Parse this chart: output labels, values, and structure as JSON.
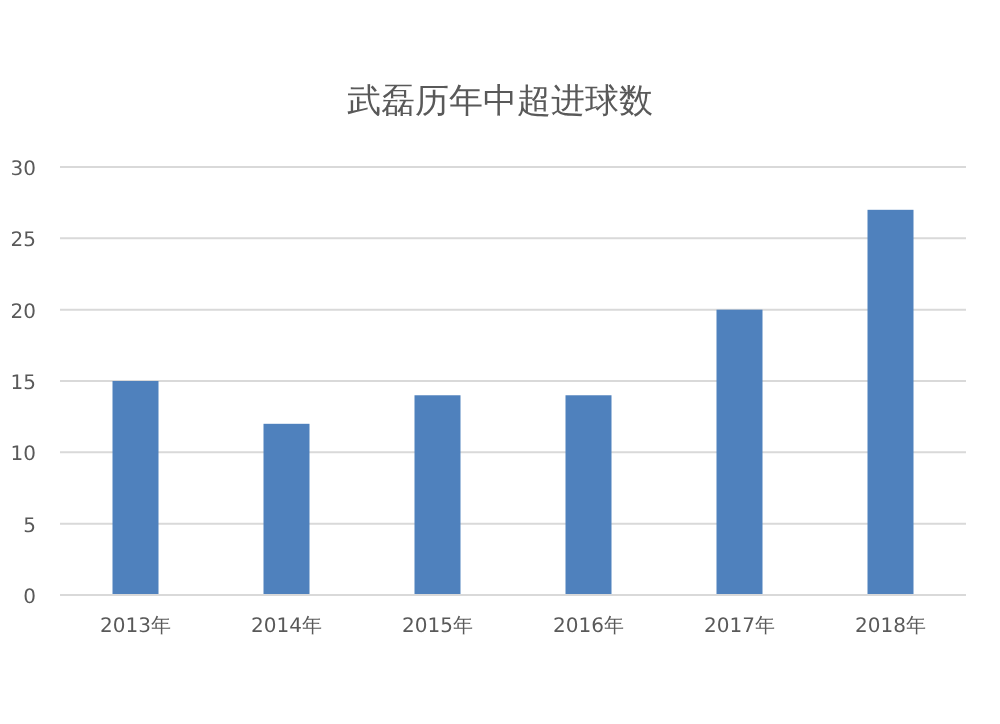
{
  "chart_data": {
    "type": "bar",
    "title": "武磊历年中超进球数",
    "categories": [
      "2013年",
      "2014年",
      "2015年",
      "2016年",
      "2017年",
      "2018年"
    ],
    "values": [
      15,
      12,
      14,
      14,
      20,
      27
    ],
    "color": "#4f81bd",
    "ylim": [
      0,
      30
    ],
    "yticks": [
      0,
      5,
      10,
      15,
      20,
      25,
      30
    ],
    "grid": "y"
  }
}
